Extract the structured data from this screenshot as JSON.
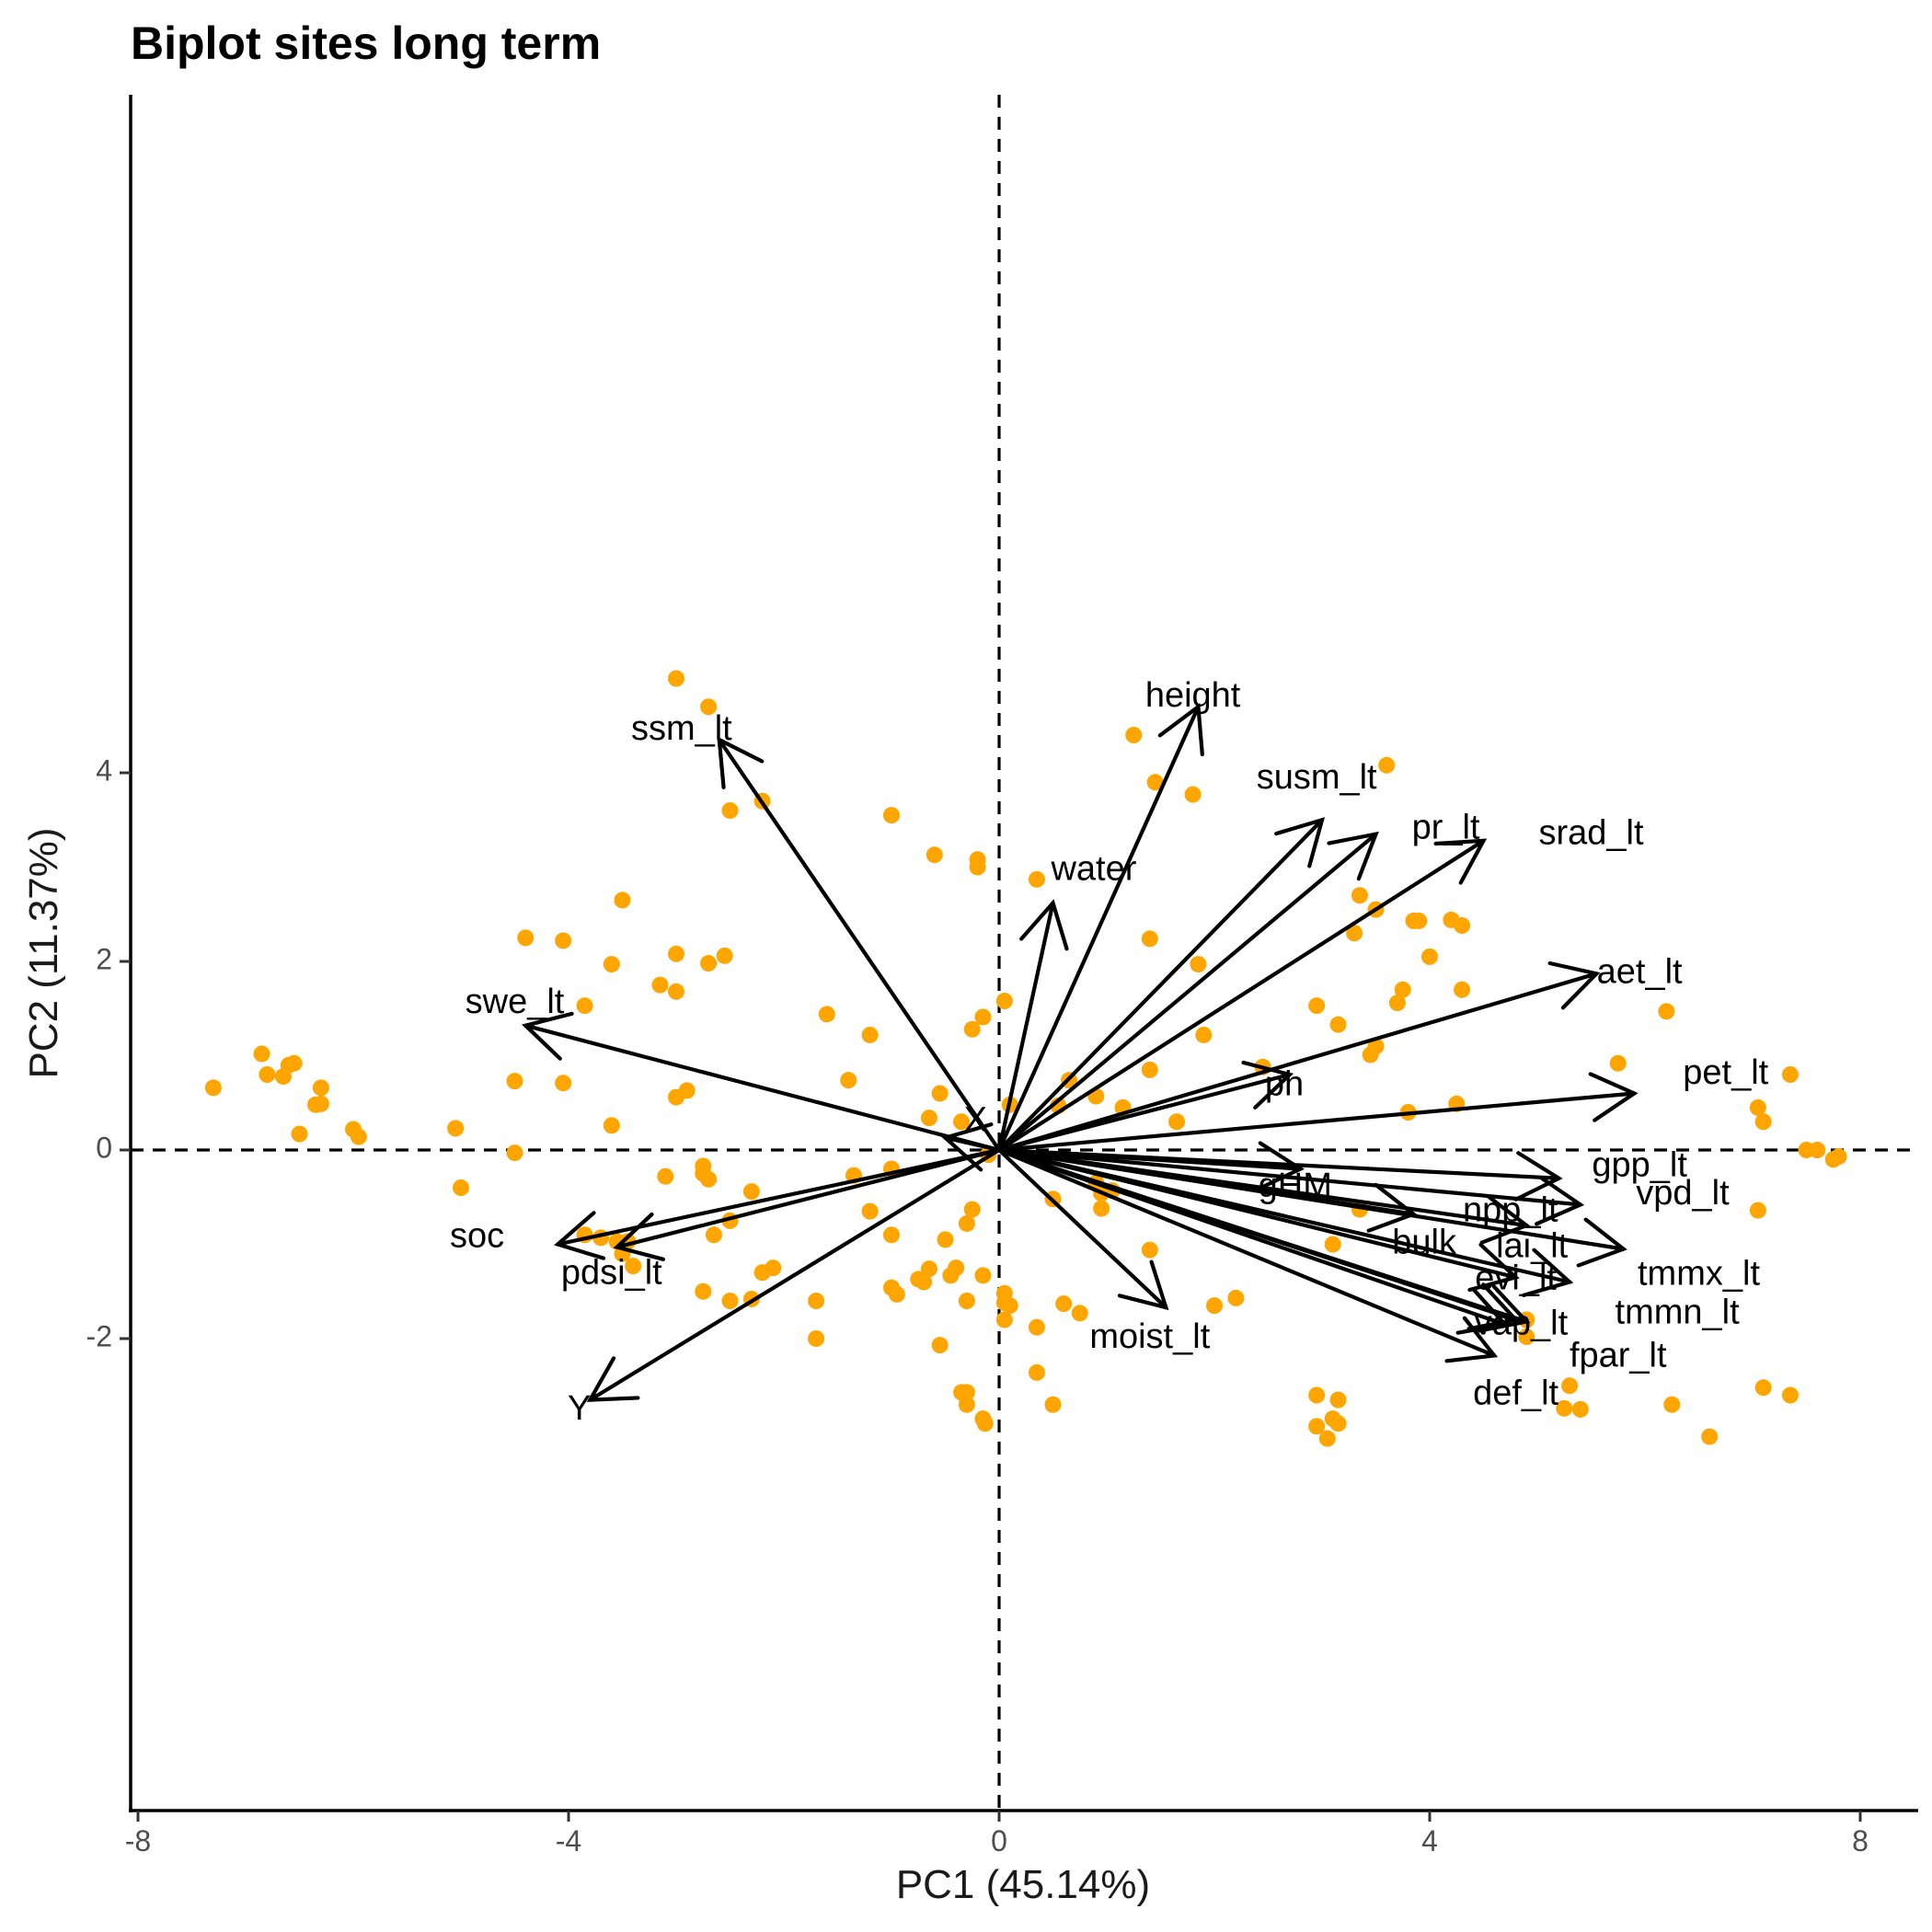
{
  "chart_data": {
    "type": "scatter",
    "subtype": "pca-biplot",
    "title": "Biplot sites long term",
    "xlabel": "PC1 (45.14%)",
    "ylabel": "PC2 (11.37%)",
    "xlim": [
      -8.1,
      8.5
    ],
    "ylim": [
      -3.5,
      5.55
    ],
    "x_ticks": [
      -8,
      -4,
      0,
      4,
      8
    ],
    "x_tick_labels": [
      "-8",
      "-4",
      "0",
      "4",
      "8"
    ],
    "y_ticks": [
      -2,
      0,
      2,
      4
    ],
    "y_tick_labels": [
      "-2",
      "0",
      "2",
      "4"
    ],
    "reference_lines": {
      "x": 0,
      "y": 0,
      "style": "dashed"
    },
    "grid": false,
    "legend": "none",
    "point_color": "#FFA500",
    "arrow_color": "#000000",
    "points": [
      [
        -3.0,
        5.0
      ],
      [
        -2.7,
        4.7
      ],
      [
        1.25,
        4.4
      ],
      [
        1.45,
        3.9
      ],
      [
        1.8,
        3.77
      ],
      [
        3.6,
        4.08
      ],
      [
        -2.5,
        3.6
      ],
      [
        -2.2,
        3.7
      ],
      [
        -1.0,
        3.55
      ],
      [
        -0.6,
        3.13
      ],
      [
        -0.2,
        3.08
      ],
      [
        -0.2,
        3.0
      ],
      [
        0.35,
        2.87
      ],
      [
        -3.5,
        2.65
      ],
      [
        -4.4,
        2.25
      ],
      [
        -4.05,
        2.22
      ],
      [
        -3.6,
        1.97
      ],
      [
        -3.0,
        2.08
      ],
      [
        -2.7,
        1.98
      ],
      [
        -2.55,
        2.06
      ],
      [
        -3.15,
        1.75
      ],
      [
        -3.0,
        1.68
      ],
      [
        -3.85,
        1.53
      ],
      [
        -1.6,
        1.44
      ],
      [
        -1.2,
        1.22
      ],
      [
        0.05,
        1.58
      ],
      [
        -0.15,
        1.41
      ],
      [
        -0.25,
        1.28
      ],
      [
        1.4,
        2.24
      ],
      [
        1.85,
        1.97
      ],
      [
        3.35,
        2.7
      ],
      [
        3.5,
        2.55
      ],
      [
        3.3,
        2.3
      ],
      [
        3.85,
        2.43
      ],
      [
        3.9,
        2.43
      ],
      [
        4.2,
        2.44
      ],
      [
        4.3,
        2.38
      ],
      [
        4.0,
        2.05
      ],
      [
        2.95,
        1.53
      ],
      [
        3.75,
        1.7
      ],
      [
        3.7,
        1.56
      ],
      [
        4.3,
        1.7
      ],
      [
        6.2,
        1.47
      ],
      [
        3.15,
        1.33
      ],
      [
        1.9,
        1.22
      ],
      [
        3.5,
        1.1
      ],
      [
        3.45,
        1.01
      ],
      [
        5.75,
        0.92
      ],
      [
        7.35,
        0.8
      ],
      [
        2.45,
        0.88
      ],
      [
        1.4,
        0.85
      ],
      [
        -7.3,
        0.66
      ],
      [
        -6.85,
        1.02
      ],
      [
        -6.8,
        0.8
      ],
      [
        -6.65,
        0.78
      ],
      [
        -6.6,
        0.9
      ],
      [
        -6.55,
        0.92
      ],
      [
        -6.3,
        0.66
      ],
      [
        -6.35,
        0.48
      ],
      [
        -6.3,
        0.49
      ],
      [
        -6.5,
        0.17
      ],
      [
        -6.0,
        0.22
      ],
      [
        -5.95,
        0.14
      ],
      [
        -5.05,
        0.23
      ],
      [
        -4.5,
        0.73
      ],
      [
        -4.05,
        0.71
      ],
      [
        -3.0,
        0.56
      ],
      [
        -2.9,
        0.63
      ],
      [
        -1.4,
        0.74
      ],
      [
        -0.55,
        0.6
      ],
      [
        -0.65,
        0.34
      ],
      [
        -0.35,
        0.3
      ],
      [
        -3.6,
        0.26
      ],
      [
        0.65,
        0.74
      ],
      [
        0.9,
        0.57
      ],
      [
        1.15,
        0.45
      ],
      [
        0.55,
        0.47
      ],
      [
        0.1,
        0.48
      ],
      [
        1.65,
        0.3
      ],
      [
        3.8,
        0.4
      ],
      [
        4.25,
        0.49
      ],
      [
        7.05,
        0.45
      ],
      [
        7.1,
        0.3
      ],
      [
        7.5,
        0.0
      ],
      [
        7.6,
        0.0
      ],
      [
        7.75,
        -0.1
      ],
      [
        7.8,
        -0.07
      ],
      [
        -4.5,
        -0.03
      ],
      [
        -0.1,
        -0.05
      ],
      [
        -5.0,
        -0.4
      ],
      [
        -3.1,
        -0.28
      ],
      [
        -2.75,
        -0.25
      ],
      [
        -2.75,
        -0.17
      ],
      [
        -2.7,
        -0.31
      ],
      [
        -2.3,
        -0.44
      ],
      [
        -1.35,
        -0.27
      ],
      [
        -1.0,
        -0.2
      ],
      [
        0.9,
        -0.35
      ],
      [
        1.05,
        -0.43
      ],
      [
        0.95,
        -0.46
      ],
      [
        0.5,
        -0.52
      ],
      [
        0.95,
        -0.62
      ],
      [
        -1.2,
        -0.65
      ],
      [
        -0.25,
        -0.63
      ],
      [
        -0.3,
        -0.78
      ],
      [
        -2.5,
        -0.75
      ],
      [
        -2.65,
        -0.9
      ],
      [
        -1.0,
        -0.9
      ],
      [
        -0.5,
        -0.95
      ],
      [
        3.35,
        -0.63
      ],
      [
        3.1,
        -1.0
      ],
      [
        1.4,
        -1.06
      ],
      [
        7.05,
        -0.64
      ],
      [
        -3.85,
        -0.9
      ],
      [
        -3.7,
        -0.93
      ],
      [
        -3.55,
        -0.97
      ],
      [
        -3.45,
        -0.97
      ],
      [
        -3.5,
        -1.1
      ],
      [
        -3.4,
        -1.23
      ],
      [
        -2.2,
        -1.3
      ],
      [
        -2.1,
        -1.25
      ],
      [
        -0.65,
        -1.26
      ],
      [
        -0.4,
        -1.25
      ],
      [
        -0.45,
        -1.33
      ],
      [
        -0.75,
        -1.37
      ],
      [
        -0.7,
        -1.4
      ],
      [
        -0.15,
        -1.33
      ],
      [
        -2.75,
        -1.5
      ],
      [
        -2.5,
        -1.6
      ],
      [
        -2.3,
        -1.58
      ],
      [
        -1.7,
        -1.6
      ],
      [
        -1.0,
        -1.46
      ],
      [
        -0.95,
        -1.53
      ],
      [
        -0.3,
        -1.6
      ],
      [
        0.05,
        -1.52
      ],
      [
        0.05,
        -1.62
      ],
      [
        0.1,
        -1.65
      ],
      [
        0.6,
        -1.63
      ],
      [
        0.75,
        -1.73
      ],
      [
        0.05,
        -1.8
      ],
      [
        0.35,
        -1.88
      ],
      [
        2.2,
        -1.57
      ],
      [
        2.0,
        -1.65
      ],
      [
        -1.7,
        -2.0
      ],
      [
        -0.55,
        -2.07
      ],
      [
        4.9,
        -1.8
      ],
      [
        4.9,
        -1.98
      ],
      [
        0.35,
        -2.36
      ],
      [
        -0.35,
        -2.57
      ],
      [
        -0.3,
        -2.57
      ],
      [
        -0.3,
        -2.7
      ],
      [
        0.5,
        -2.7
      ],
      [
        -0.15,
        -2.85
      ],
      [
        -0.13,
        -2.9
      ],
      [
        2.95,
        -2.6
      ],
      [
        3.15,
        -2.65
      ],
      [
        3.1,
        -2.85
      ],
      [
        3.15,
        -2.9
      ],
      [
        2.95,
        -2.93
      ],
      [
        3.05,
        -3.06
      ],
      [
        5.3,
        -2.5
      ],
      [
        5.25,
        -2.74
      ],
      [
        5.4,
        -2.75
      ],
      [
        6.25,
        -2.7
      ],
      [
        6.6,
        -3.04
      ],
      [
        7.1,
        -2.52
      ],
      [
        7.35,
        -2.6
      ]
    ],
    "loadings": [
      {
        "name": "height",
        "x": 1.85,
        "y": 4.7,
        "label_x": 1.8,
        "label_y": 4.8
      },
      {
        "name": "ssm_lt",
        "x": -2.6,
        "y": 4.35,
        "label_x": -2.95,
        "label_y": 4.45
      },
      {
        "name": "susm_lt",
        "x": 3.0,
        "y": 3.5,
        "label_x": 2.95,
        "label_y": 3.93
      },
      {
        "name": "pr_lt",
        "x": 3.5,
        "y": 3.35,
        "label_x": 4.15,
        "label_y": 3.4
      },
      {
        "name": "srad_lt",
        "x": 4.5,
        "y": 3.28,
        "label_x": 5.5,
        "label_y": 3.34
      },
      {
        "name": "water",
        "x": 0.5,
        "y": 2.62,
        "label_x": 0.88,
        "label_y": 2.96
      },
      {
        "name": "aet_lt",
        "x": 5.55,
        "y": 1.87,
        "label_x": 5.95,
        "label_y": 1.87
      },
      {
        "name": "swe_lt",
        "x": -4.4,
        "y": 1.32,
        "label_x": -4.5,
        "label_y": 1.55
      },
      {
        "name": "pet_lt",
        "x": 5.9,
        "y": 0.6,
        "label_x": 6.75,
        "label_y": 0.8
      },
      {
        "name": "ph",
        "x": 2.7,
        "y": 0.8,
        "label_x": 2.65,
        "label_y": 0.68
      },
      {
        "name": "X",
        "x": -0.5,
        "y": 0.13,
        "label_x": -0.22,
        "label_y": 0.3
      },
      {
        "name": "gpp_lt",
        "x": 5.2,
        "y": -0.3,
        "label_x": 5.95,
        "label_y": -0.18
      },
      {
        "name": "gHM",
        "x": 2.8,
        "y": -0.2,
        "label_x": 2.75,
        "label_y": -0.4
      },
      {
        "name": "vpd_lt",
        "x": 5.4,
        "y": -0.58,
        "label_x": 6.35,
        "label_y": -0.48
      },
      {
        "name": "npp_lt",
        "x": 4.9,
        "y": -0.8,
        "label_x": 4.75,
        "label_y": -0.66
      },
      {
        "name": "bulk",
        "x": 3.85,
        "y": -0.68,
        "label_x": 3.95,
        "label_y": -1.0
      },
      {
        "name": "lai_lt",
        "x": 5.8,
        "y": -1.05,
        "label_x": 4.95,
        "label_y": -1.04
      },
      {
        "name": "tmmx_lt",
        "x": 5.3,
        "y": -1.4,
        "label_x": 6.5,
        "label_y": -1.33
      },
      {
        "name": "evi_lt",
        "x": 4.8,
        "y": -1.35,
        "label_x": 4.8,
        "label_y": -1.38
      },
      {
        "name": "tmmn_lt",
        "x": 4.9,
        "y": -1.82,
        "label_x": 6.3,
        "label_y": -1.74
      },
      {
        "name": "vap_lt",
        "x": 4.8,
        "y": -1.8,
        "label_x": 4.85,
        "label_y": -1.86
      },
      {
        "name": "fpar_lt",
        "x": 4.6,
        "y": -2.18,
        "label_x": 5.75,
        "label_y": -2.2
      },
      {
        "name": "def_lt",
        "x": 4.7,
        "y": -1.85,
        "label_x": 4.8,
        "label_y": -2.6
      },
      {
        "name": "moist_lt",
        "x": 1.55,
        "y": -1.67,
        "label_x": 1.4,
        "label_y": -2.0
      },
      {
        "name": "soc",
        "x": -4.1,
        "y": -1.0,
        "label_x": -4.85,
        "label_y": -0.93
      },
      {
        "name": "pdsi_lt",
        "x": -3.55,
        "y": -1.03,
        "label_x": -3.6,
        "label_y": -1.32
      },
      {
        "name": "Y",
        "x": -3.8,
        "y": -2.65,
        "label_x": -3.9,
        "label_y": -2.76
      }
    ]
  }
}
